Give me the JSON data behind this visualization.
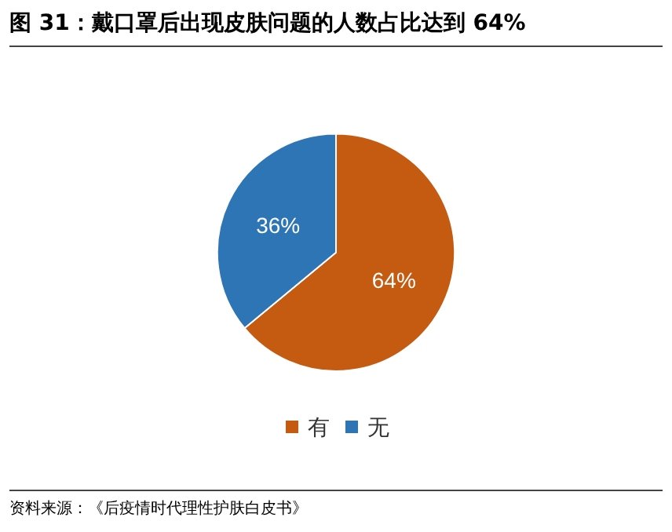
{
  "chart_data": {
    "type": "pie",
    "title": "图 31：戴口罩后出现皮肤问题的人数占比达到 64%",
    "categories": [
      "有",
      "无"
    ],
    "values": [
      64,
      36
    ],
    "colors": [
      "#c55a11",
      "#2e75b6"
    ],
    "value_labels": [
      "64%",
      "36%"
    ],
    "legend": "bottom",
    "annotations": [
      "资料来源：《后疫情时代理性护肤白皮书》"
    ]
  }
}
